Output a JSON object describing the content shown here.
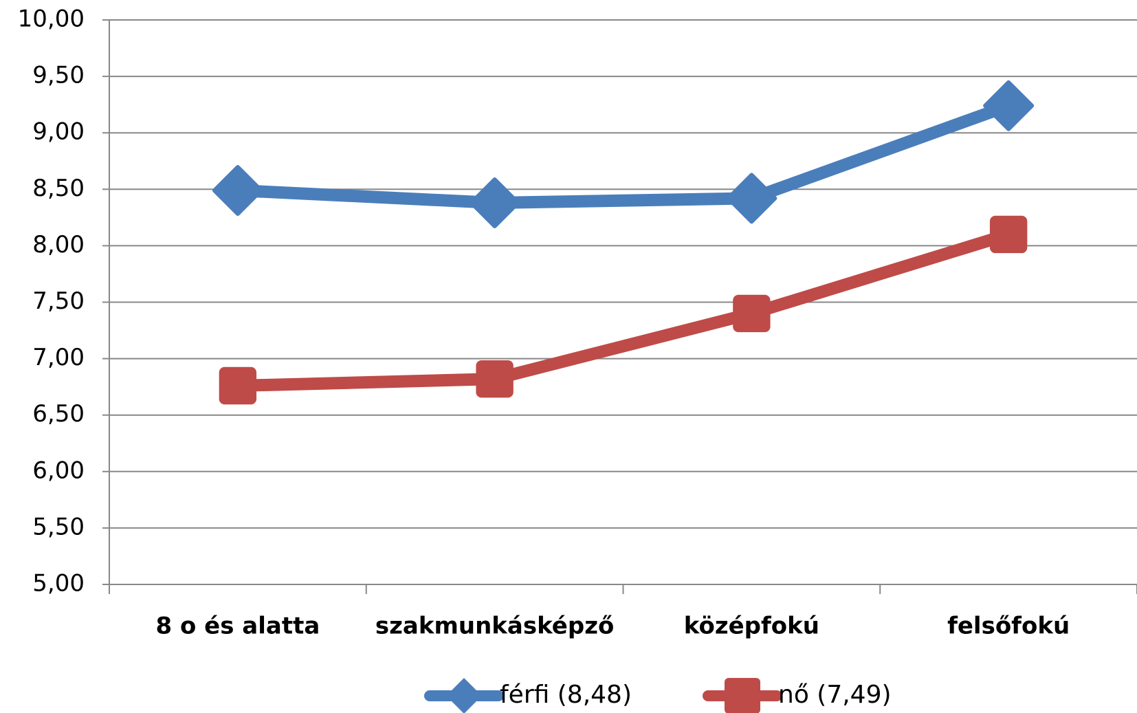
{
  "chart_data": {
    "type": "line",
    "categories": [
      "8 o és alatta",
      "szakmunkásképző",
      "középfokú",
      "felsőfokú"
    ],
    "series": [
      {
        "name": "férfi (8,48)",
        "color": "#4a7ebb",
        "marker": "diamond",
        "values": [
          8.49,
          8.38,
          8.42,
          9.24
        ]
      },
      {
        "name": "nő  (7,49)",
        "color": "#be4b48",
        "marker": "square",
        "values": [
          6.76,
          6.82,
          7.4,
          8.1
        ]
      }
    ],
    "ylim": [
      5,
      10
    ],
    "yticks": [
      {
        "value": 5,
        "label": "5,00"
      },
      {
        "value": 5.5,
        "label": "5,50"
      },
      {
        "value": 6,
        "label": "6,00"
      },
      {
        "value": 6.5,
        "label": "6,50"
      },
      {
        "value": 7,
        "label": "7,00"
      },
      {
        "value": 7.5,
        "label": "7,50"
      },
      {
        "value": 8,
        "label": "8,00"
      },
      {
        "value": 8.5,
        "label": "8,50"
      },
      {
        "value": 9,
        "label": "9,00"
      },
      {
        "value": 9.5,
        "label": "9,50"
      },
      {
        "value": 10,
        "label": "10,00"
      }
    ],
    "grid": true,
    "legend": "bottom"
  }
}
